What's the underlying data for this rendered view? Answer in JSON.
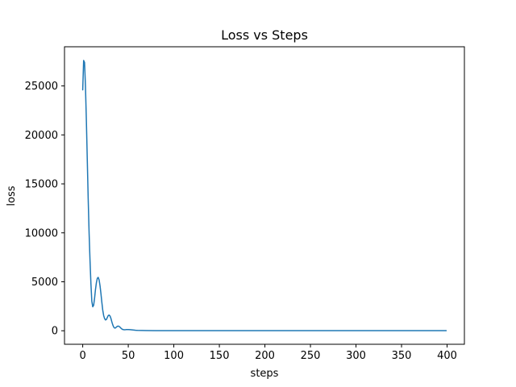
{
  "chart_data": {
    "type": "line",
    "title": "Loss vs Steps",
    "xlabel": "steps",
    "ylabel": "loss",
    "xlim": [
      -20,
      419
    ],
    "ylim": [
      -1380,
      29000
    ],
    "xticks": [
      0,
      50,
      100,
      150,
      200,
      250,
      300,
      350,
      400
    ],
    "yticks": [
      0,
      5000,
      10000,
      15000,
      20000,
      25000
    ],
    "grid": false,
    "legend": "none",
    "series": [
      {
        "color": "#1f77b4",
        "x": [
          0,
          1,
          2,
          3,
          4,
          5,
          6,
          7,
          8,
          9,
          10,
          11,
          12,
          13,
          14,
          15,
          16,
          17,
          18,
          19,
          20,
          21,
          22,
          23,
          24,
          25,
          26,
          27,
          28,
          29,
          30,
          31,
          32,
          33,
          34,
          35,
          36,
          37,
          38,
          39,
          40,
          41,
          42,
          43,
          44,
          45,
          46,
          47,
          48,
          50,
          52,
          54,
          56,
          58,
          60,
          65,
          70,
          80,
          90,
          100,
          110,
          120,
          130,
          140,
          150,
          160,
          170,
          180,
          190,
          200,
          210,
          220,
          230,
          240,
          250,
          260,
          270,
          280,
          290,
          300,
          310,
          320,
          330,
          340,
          350,
          360,
          370,
          380,
          390,
          399
        ],
        "y": [
          24600,
          27600,
          27400,
          25000,
          21500,
          17500,
          13500,
          10000,
          7200,
          4800,
          3000,
          2450,
          2600,
          3300,
          4200,
          4900,
          5350,
          5450,
          5200,
          4600,
          3800,
          2900,
          2100,
          1550,
          1250,
          1100,
          1150,
          1350,
          1550,
          1600,
          1500,
          1250,
          900,
          600,
          380,
          280,
          290,
          380,
          450,
          480,
          440,
          360,
          260,
          180,
          130,
          110,
          105,
          110,
          120,
          125,
          110,
          90,
          70,
          50,
          35,
          25,
          18,
          12,
          10,
          8,
          8,
          7,
          7,
          8,
          9,
          8,
          7,
          7,
          7,
          7,
          10,
          9,
          8,
          8,
          7,
          7,
          6,
          6,
          6,
          6,
          6,
          6,
          6,
          6,
          6,
          6,
          6,
          6,
          6,
          5
        ]
      }
    ]
  }
}
